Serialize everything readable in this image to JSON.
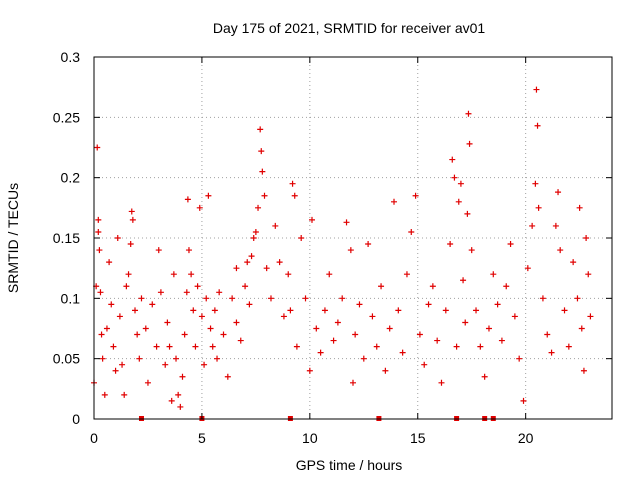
{
  "chart_data": {
    "type": "scatter",
    "title": "Day 175 of 2021, SRMTID for receiver av01",
    "xlabel": "GPS time / hours",
    "ylabel": "SRMTID / TECUs",
    "xlim": [
      0,
      24
    ],
    "ylim": [
      0,
      0.3
    ],
    "x_ticks": [
      "0",
      "5",
      "10",
      "15",
      "20"
    ],
    "x_tick_values": [
      0,
      5,
      10,
      15,
      20
    ],
    "y_ticks": [
      "0",
      "0.05",
      "0.1",
      "0.15",
      "0.2",
      "0.25",
      "0.3"
    ],
    "y_tick_values": [
      0,
      0.05,
      0.1,
      0.15,
      0.2,
      0.25,
      0.3
    ],
    "grid": true,
    "marker": "+",
    "color": "#e00000",
    "baseline_markers_x": [
      2.2,
      5.0,
      9.1,
      13.2,
      16.8,
      18.1,
      18.5
    ],
    "series": [
      {
        "name": "SRMTID",
        "points": [
          [
            0.0,
            0.03
          ],
          [
            0.1,
            0.11
          ],
          [
            0.15,
            0.225
          ],
          [
            0.2,
            0.165
          ],
          [
            0.2,
            0.155
          ],
          [
            0.25,
            0.14
          ],
          [
            0.3,
            0.105
          ],
          [
            0.35,
            0.07
          ],
          [
            0.4,
            0.05
          ],
          [
            0.5,
            0.02
          ],
          [
            0.6,
            0.075
          ],
          [
            0.7,
            0.13
          ],
          [
            0.8,
            0.095
          ],
          [
            0.9,
            0.06
          ],
          [
            1.0,
            0.04
          ],
          [
            1.1,
            0.15
          ],
          [
            1.2,
            0.085
          ],
          [
            1.3,
            0.045
          ],
          [
            1.4,
            0.02
          ],
          [
            1.5,
            0.11
          ],
          [
            1.6,
            0.12
          ],
          [
            1.7,
            0.145
          ],
          [
            1.75,
            0.172
          ],
          [
            1.8,
            0.165
          ],
          [
            1.9,
            0.09
          ],
          [
            2.0,
            0.07
          ],
          [
            2.1,
            0.05
          ],
          [
            2.2,
            0.1
          ],
          [
            2.4,
            0.075
          ],
          [
            2.5,
            0.03
          ],
          [
            2.7,
            0.095
          ],
          [
            2.9,
            0.06
          ],
          [
            3.1,
            0.105
          ],
          [
            3.3,
            0.045
          ],
          [
            3.4,
            0.08
          ],
          [
            3.5,
            0.06
          ],
          [
            3.6,
            0.015
          ],
          [
            3.7,
            0.12
          ],
          [
            3.8,
            0.05
          ],
          [
            3.9,
            0.02
          ],
          [
            4.0,
            0.01
          ],
          [
            4.1,
            0.035
          ],
          [
            4.2,
            0.07
          ],
          [
            4.3,
            0.105
          ],
          [
            4.35,
            0.182
          ],
          [
            4.4,
            0.14
          ],
          [
            4.5,
            0.12
          ],
          [
            4.6,
            0.09
          ],
          [
            4.7,
            0.06
          ],
          [
            4.8,
            0.11
          ],
          [
            4.9,
            0.175
          ],
          [
            5.0,
            0.085
          ],
          [
            5.1,
            0.045
          ],
          [
            5.2,
            0.1
          ],
          [
            5.3,
            0.185
          ],
          [
            5.4,
            0.075
          ],
          [
            5.5,
            0.06
          ],
          [
            5.6,
            0.09
          ],
          [
            5.7,
            0.05
          ],
          [
            5.8,
            0.105
          ],
          [
            6.0,
            0.07
          ],
          [
            6.2,
            0.035
          ],
          [
            6.4,
            0.1
          ],
          [
            6.6,
            0.08
          ],
          [
            6.8,
            0.065
          ],
          [
            7.0,
            0.11
          ],
          [
            7.1,
            0.13
          ],
          [
            7.2,
            0.095
          ],
          [
            7.3,
            0.135
          ],
          [
            7.4,
            0.15
          ],
          [
            7.5,
            0.155
          ],
          [
            7.6,
            0.175
          ],
          [
            7.7,
            0.24
          ],
          [
            7.75,
            0.222
          ],
          [
            7.8,
            0.205
          ],
          [
            7.9,
            0.185
          ],
          [
            8.0,
            0.125
          ],
          [
            8.2,
            0.1
          ],
          [
            8.4,
            0.16
          ],
          [
            8.6,
            0.13
          ],
          [
            8.8,
            0.085
          ],
          [
            9.0,
            0.12
          ],
          [
            9.1,
            0.09
          ],
          [
            9.2,
            0.195
          ],
          [
            9.3,
            0.185
          ],
          [
            9.4,
            0.06
          ],
          [
            9.6,
            0.15
          ],
          [
            9.8,
            0.1
          ],
          [
            10.0,
            0.04
          ],
          [
            10.1,
            0.165
          ],
          [
            10.3,
            0.075
          ],
          [
            10.5,
            0.055
          ],
          [
            10.7,
            0.09
          ],
          [
            10.9,
            0.12
          ],
          [
            11.1,
            0.065
          ],
          [
            11.3,
            0.08
          ],
          [
            11.5,
            0.1
          ],
          [
            11.7,
            0.163
          ],
          [
            11.9,
            0.14
          ],
          [
            12.1,
            0.07
          ],
          [
            12.3,
            0.095
          ],
          [
            12.5,
            0.05
          ],
          [
            12.7,
            0.145
          ],
          [
            12.9,
            0.085
          ],
          [
            13.1,
            0.06
          ],
          [
            13.3,
            0.11
          ],
          [
            13.5,
            0.04
          ],
          [
            13.7,
            0.075
          ],
          [
            13.9,
            0.18
          ],
          [
            14.1,
            0.09
          ],
          [
            14.3,
            0.055
          ],
          [
            14.5,
            0.12
          ],
          [
            14.7,
            0.155
          ],
          [
            14.9,
            0.185
          ],
          [
            15.1,
            0.07
          ],
          [
            15.3,
            0.045
          ],
          [
            15.5,
            0.095
          ],
          [
            15.7,
            0.11
          ],
          [
            15.9,
            0.065
          ],
          [
            16.1,
            0.03
          ],
          [
            16.3,
            0.09
          ],
          [
            16.5,
            0.145
          ],
          [
            16.6,
            0.215
          ],
          [
            16.7,
            0.2
          ],
          [
            16.8,
            0.06
          ],
          [
            16.9,
            0.18
          ],
          [
            17.0,
            0.195
          ],
          [
            17.1,
            0.115
          ],
          [
            17.2,
            0.08
          ],
          [
            17.3,
            0.17
          ],
          [
            17.35,
            0.253
          ],
          [
            17.4,
            0.228
          ],
          [
            17.5,
            0.14
          ],
          [
            17.7,
            0.09
          ],
          [
            17.9,
            0.06
          ],
          [
            18.1,
            0.035
          ],
          [
            18.3,
            0.075
          ],
          [
            18.5,
            0.12
          ],
          [
            18.7,
            0.095
          ],
          [
            18.9,
            0.065
          ],
          [
            19.1,
            0.11
          ],
          [
            19.3,
            0.145
          ],
          [
            19.5,
            0.085
          ],
          [
            19.7,
            0.05
          ],
          [
            19.9,
            0.015
          ],
          [
            20.1,
            0.125
          ],
          [
            20.3,
            0.16
          ],
          [
            20.45,
            0.195
          ],
          [
            20.5,
            0.273
          ],
          [
            20.55,
            0.243
          ],
          [
            20.6,
            0.175
          ],
          [
            20.8,
            0.1
          ],
          [
            21.0,
            0.07
          ],
          [
            21.2,
            0.055
          ],
          [
            21.4,
            0.16
          ],
          [
            21.5,
            0.188
          ],
          [
            21.6,
            0.14
          ],
          [
            21.8,
            0.09
          ],
          [
            22.0,
            0.06
          ],
          [
            22.2,
            0.13
          ],
          [
            22.4,
            0.1
          ],
          [
            22.5,
            0.175
          ],
          [
            22.6,
            0.075
          ],
          [
            22.7,
            0.04
          ],
          [
            22.8,
            0.15
          ],
          [
            22.9,
            0.12
          ],
          [
            23.0,
            0.085
          ],
          [
            3.0,
            0.14
          ],
          [
            6.6,
            0.125
          ],
          [
            12.0,
            0.03
          ]
        ]
      }
    ]
  }
}
